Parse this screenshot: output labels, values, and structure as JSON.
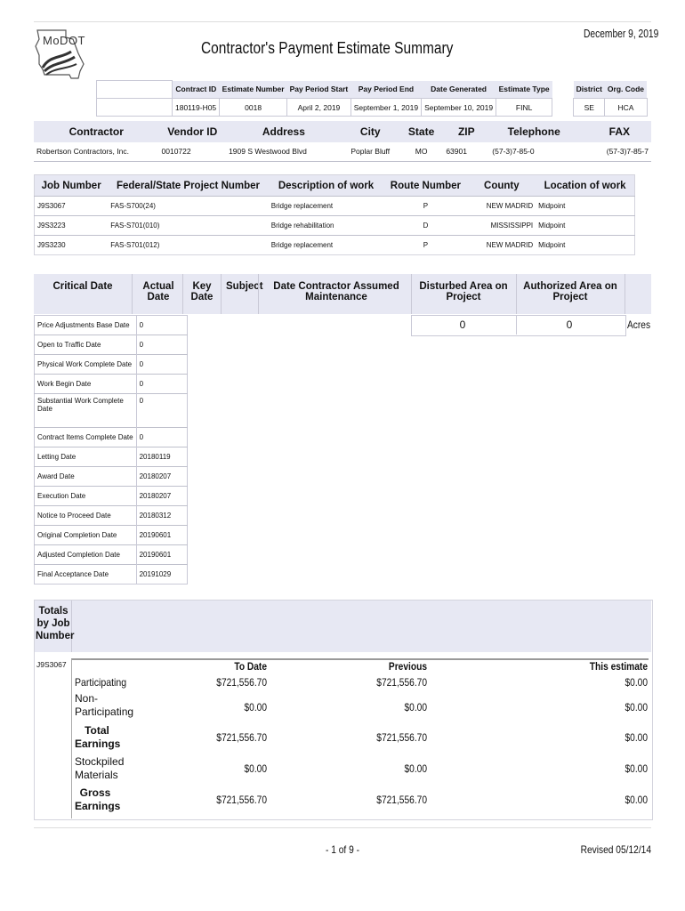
{
  "header": {
    "logo_text": "MoDOT",
    "title": "Contractor's Payment Estimate Summary",
    "date": "December 9, 2019"
  },
  "summary": {
    "headers": [
      "Contract ID",
      "Estimate Number",
      "Pay Period Start",
      "Pay Period End",
      "Date Generated",
      "Estimate Type"
    ],
    "values": [
      "180119-H05",
      "0018",
      "April 2, 2019",
      "September 1, 2019",
      "September 10, 2019",
      "FINL"
    ],
    "district_header": "District",
    "orgcode_header": "Org. Code",
    "district": "SE",
    "orgcode": "HCA"
  },
  "contractor": {
    "headers": [
      "Contractor",
      "Vendor ID",
      "Address",
      "City",
      "State",
      "ZIP",
      "Telephone",
      "FAX"
    ],
    "row": [
      "Robertson Contractors, Inc.",
      "0010722",
      "1909 S Westwood Blvd",
      "Poplar Bluff",
      "MO",
      "63901",
      "(57-3)7-85-0",
      "(57-3)7-85-7"
    ]
  },
  "jobs": {
    "headers": [
      "Job Number",
      "Federal/State Project Number",
      "Description of work",
      "Route Number",
      "County",
      "Location of work"
    ],
    "rows": [
      [
        "J9S3067",
        "FAS-S700(24)",
        "Bridge replacement",
        "P",
        "NEW MADRID",
        "Midpoint"
      ],
      [
        "J9S3223",
        "FAS-S701(010)",
        "Bridge rehabilitation",
        "D",
        "MISSISSIPPI",
        "Midpoint"
      ],
      [
        "J9S3230",
        "FAS-S701(012)",
        "Bridge replacement",
        "P",
        "NEW MADRID",
        "Midpoint"
      ]
    ]
  },
  "dates": {
    "headers": [
      "Critical Date",
      "Actual Date",
      "Key Date",
      "Subject",
      "Date Contractor Assumed Maintenance",
      "Disturbed Area on Project",
      "Authorized Area on Project"
    ],
    "disturbed_value": "0",
    "authorized_value": "0",
    "area_unit": "Acres",
    "rows": [
      [
        "Price Adjustments Base Date",
        "0"
      ],
      [
        "Open to Traffic Date",
        "0"
      ],
      [
        "Physical Work Complete Date",
        "0"
      ],
      [
        "Work Begin Date",
        "0"
      ],
      [
        "Substantial Work Complete Date",
        "0"
      ],
      [
        "Contract Items Complete Date",
        "0"
      ],
      [
        "Letting Date",
        "20180119"
      ],
      [
        "Award Date",
        "20180207"
      ],
      [
        "Execution Date",
        "20180207"
      ],
      [
        "Notice to Proceed Date",
        "20180312"
      ],
      [
        "Original Completion Date",
        "20190601"
      ],
      [
        "Adjusted Completion Date",
        "20190601"
      ],
      [
        "Final Acceptance Date",
        "20191029"
      ]
    ]
  },
  "totals": {
    "header": "Totals by Job Number",
    "job": "J9S3067",
    "col_headers": [
      "To Date",
      "Previous",
      "This estimate"
    ],
    "rows": [
      {
        "label": "Participating",
        "to_date": "$721,556.70",
        "previous": "$721,556.70",
        "this": "$0.00"
      },
      {
        "label": "Non-Participating",
        "to_date": "$0.00",
        "previous": "$0.00",
        "this": "$0.00"
      },
      {
        "label": "Total Earnings",
        "to_date": "$721,556.70",
        "previous": "$721,556.70",
        "this": "$0.00"
      },
      {
        "label": "Stockpiled Materials",
        "to_date": "$0.00",
        "previous": "$0.00",
        "this": "$0.00"
      },
      {
        "label": "Gross Earnings",
        "to_date": "$721,556.70",
        "previous": "$721,556.70",
        "this": "$0.00"
      }
    ]
  },
  "footer": {
    "page": "- 1 of 9 -",
    "revised": "Revised 05/12/14"
  }
}
